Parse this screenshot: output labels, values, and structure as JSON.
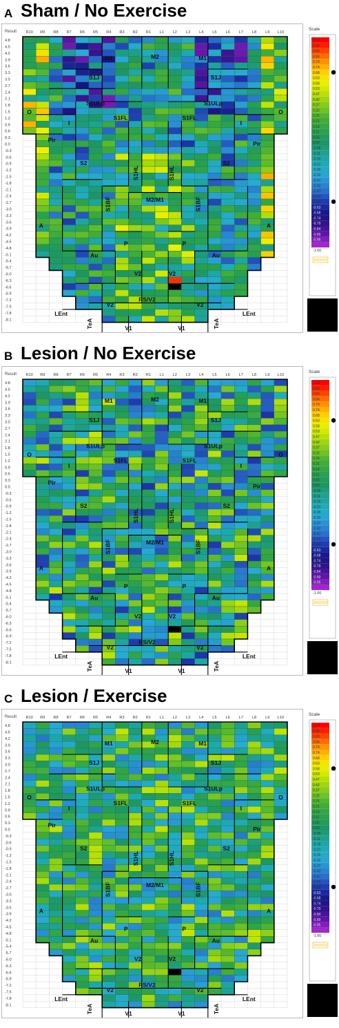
{
  "figure": {
    "panels": [
      {
        "letter": "A",
        "title": "Sham / No Exercise",
        "seed": 11,
        "mode": "sham"
      },
      {
        "letter": "B",
        "title": "Lesion / No Exercise",
        "seed": 23,
        "mode": "lesion"
      },
      {
        "letter": "C",
        "title": "Lesion / Exercise",
        "seed": 37,
        "mode": "exercise"
      }
    ],
    "result_label": "Result",
    "scale_label": "Scale",
    "colors": {
      "black": "#000000",
      "grid_line": "#d4d4d4",
      "region_border": "#000000",
      "scale_bottom_box": "#000000"
    }
  },
  "chart_data": {
    "type": "heatmap",
    "columns": [
      "R10",
      "R9",
      "R8",
      "R7",
      "R6",
      "R5",
      "R4",
      "R3",
      "R2",
      "R1",
      "L1",
      "L2",
      "L3",
      "L4",
      "L5",
      "L6",
      "L7",
      "L8",
      "L9",
      "L10"
    ],
    "rows": [
      "4.8",
      "4.5",
      "4.2",
      "3.9",
      "3.6",
      "3.3",
      "3.0",
      "2.7",
      "2.4",
      "2.1",
      "1.8",
      "1.5",
      "1.2",
      "0.9",
      "0.6",
      "0.3",
      "0.0",
      "-0.3",
      "-0.6",
      "-0.9",
      "-1.2",
      "-1.5",
      "-1.8",
      "-2.1",
      "-2.4",
      "-2.7",
      "-3.0",
      "-3.3",
      "-3.6",
      "-3.9",
      "-4.2",
      "-4.5",
      "-4.8",
      "-5.1",
      "-5.4",
      "-5.7",
      "-6.0",
      "-6.3",
      "-6.6",
      "-6.9",
      "-7.2",
      "-7.5",
      "-7.8",
      "-8.1"
    ],
    "color_scale": {
      "labels": [
        "1.00",
        "0.95",
        "0.89",
        "0.84",
        "0.79",
        "0.74",
        "0.68",
        "0.63",
        "0.58",
        "0.53",
        "0.47",
        "0.42",
        "0.37",
        "0.32",
        "0.26",
        "0.21",
        "0.16",
        "0.11",
        "0.05",
        "0.00",
        "-0.05",
        "-0.11",
        "-0.16",
        "-0.21",
        "-0.26",
        "-0.32",
        "-0.37",
        "-0.42",
        "-0.47",
        "-0.53",
        "-0.58",
        "-0.63",
        "-0.68",
        "-0.74",
        "-0.79",
        "-0.84",
        "-0.89",
        "-0.95",
        "-1.00"
      ],
      "min": -1.0,
      "max": 1.0,
      "min_label": "-1.00"
    },
    "panel_markers": [
      {
        "upper": 0.68,
        "lower": -0.58
      },
      {
        "upper": 0.63,
        "lower": -0.58
      },
      {
        "upper": 0.58,
        "lower": -0.58
      }
    ],
    "region_labels": [
      "M1",
      "M2",
      "M1",
      "S1J",
      "S1J",
      "S1ULp",
      "S1ULp",
      "S1FL",
      "S1FL",
      "O",
      "O",
      "I",
      "I",
      "Pir",
      "Pir",
      "S2",
      "S2",
      "S1HL",
      "S1HL",
      "S1BF",
      "S1BF",
      "M2/M1",
      "A",
      "A",
      "P",
      "P",
      "Au",
      "Au",
      "V2",
      "V2",
      "RS/V2",
      "V2",
      "V2",
      "LEnt",
      "LEnt",
      "TeA",
      "TeA",
      "V1",
      "V1"
    ]
  }
}
